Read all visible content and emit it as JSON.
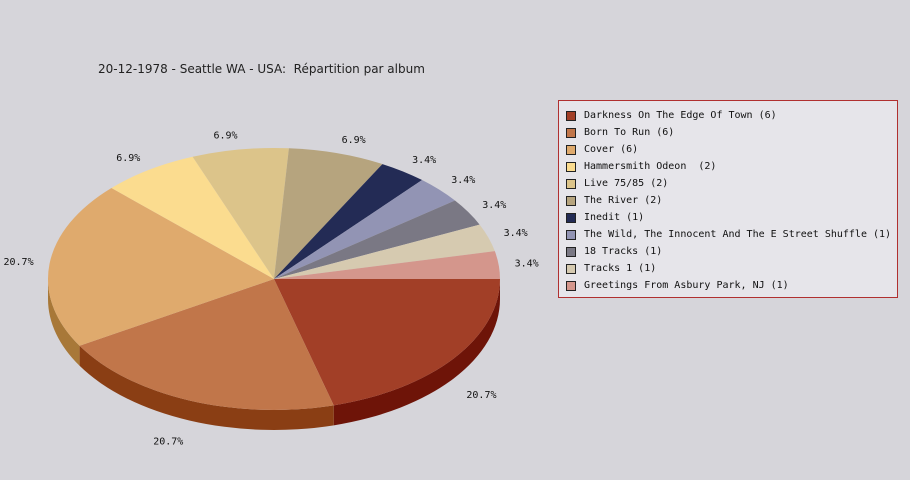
{
  "chart_data": {
    "type": "pie",
    "title": "20-12-1978 - Seattle WA - USA:  Répartition par album",
    "slices": [
      {
        "label": "Darkness On The Edge Of Town (6)",
        "value": 20.7,
        "pct_label": "20.7%",
        "color": "#a23f27",
        "side": "#6e1408"
      },
      {
        "label": "Born To Run (6)",
        "value": 20.7,
        "pct_label": "20.7%",
        "color": "#c1764a",
        "side": "#8a3e14"
      },
      {
        "label": "Cover (6)",
        "value": 20.7,
        "pct_label": "20.7%",
        "color": "#dfaa6d",
        "side": "#a87838"
      },
      {
        "label": "Hammersmith Odeon  (2)",
        "value": 6.9,
        "pct_label": "6.9%",
        "color": "#fbdc8f",
        "side": "#c8a85a"
      },
      {
        "label": "Live 75/85 (2)",
        "value": 6.9,
        "pct_label": "6.9%",
        "color": "#dcc48a",
        "side": "#a8925a"
      },
      {
        "label": "The River (2)",
        "value": 6.9,
        "pct_label": "6.9%",
        "color": "#b6a47e",
        "side": "#86764e"
      },
      {
        "label": "Inedit (1)",
        "value": 3.4,
        "pct_label": "3.4%",
        "color": "#232b55",
        "side": "#10163a"
      },
      {
        "label": "The Wild, The Innocent And The E Street Shuffle (1)",
        "value": 3.4,
        "pct_label": "3.4%",
        "color": "#9294b4",
        "side": "#626484"
      },
      {
        "label": "18 Tracks (1)",
        "value": 3.4,
        "pct_label": "3.4%",
        "color": "#7a7884",
        "side": "#4e4c58"
      },
      {
        "label": "Tracks 1 (1)",
        "value": 3.4,
        "pct_label": "3.4%",
        "color": "#d6cab0",
        "side": "#a89c84"
      },
      {
        "label": "Greetings From Asbury Park, NJ (1)",
        "value": 3.4,
        "pct_label": "3.4%",
        "color": "#d4968c",
        "side": "#a46a62"
      }
    ],
    "legend_position": "right"
  }
}
